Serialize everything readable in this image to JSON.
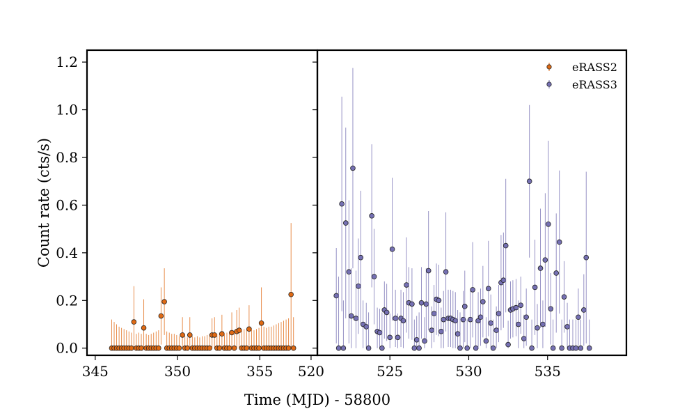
{
  "chart_data": {
    "type": "scatter",
    "xlabel": "Time (MJD) - 58800",
    "ylabel": "Count rate (cts/s)",
    "ylim": [
      -0.03,
      1.25
    ],
    "yticks": [
      "0.0",
      "0.2",
      "0.4",
      "0.6",
      "0.8",
      "1.0",
      "1.2"
    ],
    "grid": false,
    "legend_position": "top-right",
    "panels": [
      {
        "name": "left",
        "xlim": [
          344.5,
          358.5
        ],
        "xticks": [
          "345",
          "350",
          "355"
        ]
      },
      {
        "name": "right",
        "xlim": [
          520.4,
          540.0
        ],
        "xticks": [
          "520",
          "525",
          "530",
          "535"
        ]
      }
    ],
    "series": [
      {
        "name": "eRASS2",
        "panel": 0,
        "color": "#e06a14",
        "points": [
          {
            "x": 346.0,
            "y": 0.0,
            "err": 0.12
          },
          {
            "x": 346.15,
            "y": 0.0,
            "err": 0.11
          },
          {
            "x": 346.3,
            "y": 0.0,
            "err": 0.1
          },
          {
            "x": 346.45,
            "y": 0.0,
            "err": 0.09
          },
          {
            "x": 346.6,
            "y": 0.0,
            "err": 0.085
          },
          {
            "x": 346.75,
            "y": 0.0,
            "err": 0.08
          },
          {
            "x": 346.9,
            "y": 0.0,
            "err": 0.075
          },
          {
            "x": 347.05,
            "y": 0.0,
            "err": 0.07
          },
          {
            "x": 347.2,
            "y": 0.0,
            "err": 0.065
          },
          {
            "x": 347.35,
            "y": 0.11,
            "err": 0.15
          },
          {
            "x": 347.5,
            "y": 0.0,
            "err": 0.06
          },
          {
            "x": 347.65,
            "y": 0.0,
            "err": 0.065
          },
          {
            "x": 347.8,
            "y": 0.0,
            "err": 0.06
          },
          {
            "x": 347.95,
            "y": 0.085,
            "err": 0.12
          },
          {
            "x": 348.1,
            "y": 0.0,
            "err": 0.06
          },
          {
            "x": 348.25,
            "y": 0.0,
            "err": 0.055
          },
          {
            "x": 348.4,
            "y": 0.0,
            "err": 0.06
          },
          {
            "x": 348.55,
            "y": 0.0,
            "err": 0.065
          },
          {
            "x": 348.7,
            "y": 0.0,
            "err": 0.07
          },
          {
            "x": 348.85,
            "y": 0.0,
            "err": 0.075
          },
          {
            "x": 349.0,
            "y": 0.135,
            "err": 0.12
          },
          {
            "x": 349.2,
            "y": 0.195,
            "err": 0.14
          },
          {
            "x": 349.35,
            "y": 0.0,
            "err": 0.07
          },
          {
            "x": 349.5,
            "y": 0.0,
            "err": 0.065
          },
          {
            "x": 349.65,
            "y": 0.0,
            "err": 0.06
          },
          {
            "x": 349.8,
            "y": 0.0,
            "err": 0.06
          },
          {
            "x": 349.95,
            "y": 0.0,
            "err": 0.055
          },
          {
            "x": 350.1,
            "y": 0.0,
            "err": 0.05
          },
          {
            "x": 350.3,
            "y": 0.055,
            "err": 0.075
          },
          {
            "x": 350.45,
            "y": 0.0,
            "err": 0.05
          },
          {
            "x": 350.6,
            "y": 0.0,
            "err": 0.045
          },
          {
            "x": 350.75,
            "y": 0.055,
            "err": 0.075
          },
          {
            "x": 350.9,
            "y": 0.0,
            "err": 0.05
          },
          {
            "x": 351.05,
            "y": 0.0,
            "err": 0.045
          },
          {
            "x": 351.2,
            "y": 0.0,
            "err": 0.05
          },
          {
            "x": 351.35,
            "y": 0.0,
            "err": 0.045
          },
          {
            "x": 351.5,
            "y": 0.0,
            "err": 0.05
          },
          {
            "x": 351.65,
            "y": 0.0,
            "err": 0.05
          },
          {
            "x": 351.8,
            "y": 0.0,
            "err": 0.055
          },
          {
            "x": 351.95,
            "y": 0.0,
            "err": 0.06
          },
          {
            "x": 352.1,
            "y": 0.055,
            "err": 0.07
          },
          {
            "x": 352.25,
            "y": 0.055,
            "err": 0.075
          },
          {
            "x": 352.4,
            "y": 0.0,
            "err": 0.06
          },
          {
            "x": 352.55,
            "y": 0.0,
            "err": 0.065
          },
          {
            "x": 352.7,
            "y": 0.06,
            "err": 0.08
          },
          {
            "x": 352.85,
            "y": 0.0,
            "err": 0.06
          },
          {
            "x": 353.0,
            "y": 0.0,
            "err": 0.065
          },
          {
            "x": 353.15,
            "y": 0.0,
            "err": 0.07
          },
          {
            "x": 353.3,
            "y": 0.065,
            "err": 0.085
          },
          {
            "x": 353.45,
            "y": 0.0,
            "err": 0.07
          },
          {
            "x": 353.6,
            "y": 0.07,
            "err": 0.09
          },
          {
            "x": 353.75,
            "y": 0.075,
            "err": 0.095
          },
          {
            "x": 353.9,
            "y": 0.0,
            "err": 0.075
          },
          {
            "x": 354.05,
            "y": 0.0,
            "err": 0.08
          },
          {
            "x": 354.2,
            "y": 0.0,
            "err": 0.08
          },
          {
            "x": 354.35,
            "y": 0.08,
            "err": 0.1
          },
          {
            "x": 354.5,
            "y": 0.0,
            "err": 0.08
          },
          {
            "x": 354.65,
            "y": 0.0,
            "err": 0.075
          },
          {
            "x": 354.8,
            "y": 0.0,
            "err": 0.08
          },
          {
            "x": 354.95,
            "y": 0.0,
            "err": 0.085
          },
          {
            "x": 355.1,
            "y": 0.105,
            "err": 0.15
          },
          {
            "x": 355.25,
            "y": 0.0,
            "err": 0.09
          },
          {
            "x": 355.4,
            "y": 0.0,
            "err": 0.085
          },
          {
            "x": 355.55,
            "y": 0.0,
            "err": 0.09
          },
          {
            "x": 355.7,
            "y": 0.0,
            "err": 0.09
          },
          {
            "x": 355.85,
            "y": 0.0,
            "err": 0.095
          },
          {
            "x": 356.0,
            "y": 0.0,
            "err": 0.1
          },
          {
            "x": 356.15,
            "y": 0.0,
            "err": 0.105
          },
          {
            "x": 356.3,
            "y": 0.0,
            "err": 0.11
          },
          {
            "x": 356.45,
            "y": 0.0,
            "err": 0.115
          },
          {
            "x": 356.6,
            "y": 0.0,
            "err": 0.12
          },
          {
            "x": 356.75,
            "y": 0.0,
            "err": 0.125
          },
          {
            "x": 356.9,
            "y": 0.225,
            "err": 0.3
          },
          {
            "x": 357.05,
            "y": 0.0,
            "err": 0.13
          }
        ]
      },
      {
        "name": "eRASS3",
        "panel": 1,
        "color": "#7570b3",
        "points": [
          {
            "x": 521.6,
            "y": 0.22,
            "err": 0.2
          },
          {
            "x": 521.75,
            "y": 0.0,
            "err": 0.3
          },
          {
            "x": 521.95,
            "y": 0.605,
            "err": 0.45
          },
          {
            "x": 522.05,
            "y": 0.0,
            "err": 0.2
          },
          {
            "x": 522.2,
            "y": 0.525,
            "err": 0.4
          },
          {
            "x": 522.4,
            "y": 0.32,
            "err": 0.3
          },
          {
            "x": 522.55,
            "y": 0.135,
            "err": 0.2
          },
          {
            "x": 522.65,
            "y": 0.755,
            "err": 0.42
          },
          {
            "x": 522.85,
            "y": 0.125,
            "err": 0.2
          },
          {
            "x": 523.0,
            "y": 0.26,
            "err": 0.2
          },
          {
            "x": 523.15,
            "y": 0.38,
            "err": 0.28
          },
          {
            "x": 523.3,
            "y": 0.1,
            "err": 0.1
          },
          {
            "x": 523.5,
            "y": 0.09,
            "err": 0.1
          },
          {
            "x": 523.65,
            "y": 0.0,
            "err": 0.15
          },
          {
            "x": 523.85,
            "y": 0.555,
            "err": 0.3
          },
          {
            "x": 524.0,
            "y": 0.3,
            "err": 0.2
          },
          {
            "x": 524.2,
            "y": 0.07,
            "err": 0.1
          },
          {
            "x": 524.35,
            "y": 0.065,
            "err": 0.1
          },
          {
            "x": 524.5,
            "y": 0.0,
            "err": 0.15
          },
          {
            "x": 524.65,
            "y": 0.16,
            "err": 0.12
          },
          {
            "x": 524.8,
            "y": 0.15,
            "err": 0.12
          },
          {
            "x": 525.0,
            "y": 0.045,
            "err": 0.1
          },
          {
            "x": 525.15,
            "y": 0.415,
            "err": 0.3
          },
          {
            "x": 525.35,
            "y": 0.125,
            "err": 0.12
          },
          {
            "x": 525.5,
            "y": 0.045,
            "err": 0.1
          },
          {
            "x": 525.7,
            "y": 0.125,
            "err": 0.12
          },
          {
            "x": 525.85,
            "y": 0.115,
            "err": 0.12
          },
          {
            "x": 526.05,
            "y": 0.265,
            "err": 0.2
          },
          {
            "x": 526.2,
            "y": 0.19,
            "err": 0.15
          },
          {
            "x": 526.4,
            "y": 0.185,
            "err": 0.15
          },
          {
            "x": 526.55,
            "y": 0.0,
            "err": 0.12
          },
          {
            "x": 526.7,
            "y": 0.035,
            "err": 0.1
          },
          {
            "x": 526.85,
            "y": 0.0,
            "err": 0.15
          },
          {
            "x": 527.0,
            "y": 0.19,
            "err": 0.15
          },
          {
            "x": 527.2,
            "y": 0.03,
            "err": 0.1
          },
          {
            "x": 527.3,
            "y": 0.185,
            "err": 0.15
          },
          {
            "x": 527.45,
            "y": 0.325,
            "err": 0.25
          },
          {
            "x": 527.65,
            "y": 0.075,
            "err": 0.1
          },
          {
            "x": 527.8,
            "y": 0.145,
            "err": 0.12
          },
          {
            "x": 527.95,
            "y": 0.205,
            "err": 0.15
          },
          {
            "x": 528.1,
            "y": 0.2,
            "err": 0.15
          },
          {
            "x": 528.25,
            "y": 0.07,
            "err": 0.1
          },
          {
            "x": 528.4,
            "y": 0.12,
            "err": 0.12
          },
          {
            "x": 528.55,
            "y": 0.32,
            "err": 0.25
          },
          {
            "x": 528.7,
            "y": 0.125,
            "err": 0.12
          },
          {
            "x": 528.85,
            "y": 0.125,
            "err": 0.12
          },
          {
            "x": 529.0,
            "y": 0.12,
            "err": 0.12
          },
          {
            "x": 529.15,
            "y": 0.115,
            "err": 0.12
          },
          {
            "x": 529.3,
            "y": 0.06,
            "err": 0.1
          },
          {
            "x": 529.45,
            "y": 0.0,
            "err": 0.15
          },
          {
            "x": 529.65,
            "y": 0.12,
            "err": 0.12
          },
          {
            "x": 529.75,
            "y": 0.175,
            "err": 0.15
          },
          {
            "x": 529.9,
            "y": 0.0,
            "err": 0.12
          },
          {
            "x": 530.1,
            "y": 0.12,
            "err": 0.12
          },
          {
            "x": 530.25,
            "y": 0.245,
            "err": 0.2
          },
          {
            "x": 530.45,
            "y": 0.0,
            "err": 0.12
          },
          {
            "x": 530.6,
            "y": 0.115,
            "err": 0.12
          },
          {
            "x": 530.75,
            "y": 0.13,
            "err": 0.12
          },
          {
            "x": 530.9,
            "y": 0.195,
            "err": 0.15
          },
          {
            "x": 531.1,
            "y": 0.03,
            "err": 0.1
          },
          {
            "x": 531.25,
            "y": 0.25,
            "err": 0.2
          },
          {
            "x": 531.4,
            "y": 0.105,
            "err": 0.12
          },
          {
            "x": 531.55,
            "y": 0.0,
            "err": 0.12
          },
          {
            "x": 531.75,
            "y": 0.075,
            "err": 0.1
          },
          {
            "x": 531.9,
            "y": 0.145,
            "err": 0.12
          },
          {
            "x": 532.05,
            "y": 0.275,
            "err": 0.2
          },
          {
            "x": 532.2,
            "y": 0.285,
            "err": 0.2
          },
          {
            "x": 532.35,
            "y": 0.43,
            "err": 0.28
          },
          {
            "x": 532.5,
            "y": 0.015,
            "err": 0.1
          },
          {
            "x": 532.65,
            "y": 0.16,
            "err": 0.12
          },
          {
            "x": 532.8,
            "y": 0.165,
            "err": 0.12
          },
          {
            "x": 533.0,
            "y": 0.17,
            "err": 0.12
          },
          {
            "x": 533.15,
            "y": 0.1,
            "err": 0.1
          },
          {
            "x": 533.3,
            "y": 0.18,
            "err": 0.12
          },
          {
            "x": 533.5,
            "y": 0.04,
            "err": 0.1
          },
          {
            "x": 533.65,
            "y": 0.13,
            "err": 0.12
          },
          {
            "x": 533.85,
            "y": 0.7,
            "err": 0.32
          },
          {
            "x": 534.0,
            "y": 0.0,
            "err": 0.12
          },
          {
            "x": 534.2,
            "y": 0.255,
            "err": 0.2
          },
          {
            "x": 534.35,
            "y": 0.085,
            "err": 0.1
          },
          {
            "x": 534.55,
            "y": 0.335,
            "err": 0.25
          },
          {
            "x": 534.7,
            "y": 0.1,
            "err": 0.1
          },
          {
            "x": 534.85,
            "y": 0.37,
            "err": 0.28
          },
          {
            "x": 535.05,
            "y": 0.52,
            "err": 0.35
          },
          {
            "x": 535.2,
            "y": 0.165,
            "err": 0.15
          },
          {
            "x": 535.35,
            "y": 0.0,
            "err": 0.12
          },
          {
            "x": 535.55,
            "y": 0.315,
            "err": 0.25
          },
          {
            "x": 535.75,
            "y": 0.445,
            "err": 0.3
          },
          {
            "x": 535.9,
            "y": 0.0,
            "err": 0.12
          },
          {
            "x": 536.05,
            "y": 0.215,
            "err": 0.15
          },
          {
            "x": 536.25,
            "y": 0.09,
            "err": 0.1
          },
          {
            "x": 536.4,
            "y": 0.0,
            "err": 0.12
          },
          {
            "x": 536.6,
            "y": 0.0,
            "err": 0.12
          },
          {
            "x": 536.8,
            "y": 0.0,
            "err": 0.12
          },
          {
            "x": 536.95,
            "y": 0.13,
            "err": 0.12
          },
          {
            "x": 537.1,
            "y": 0.0,
            "err": 0.12
          },
          {
            "x": 537.3,
            "y": 0.16,
            "err": 0.15
          },
          {
            "x": 537.45,
            "y": 0.38,
            "err": 0.36
          },
          {
            "x": 537.65,
            "y": 0.0,
            "err": 0.12
          }
        ]
      }
    ]
  }
}
